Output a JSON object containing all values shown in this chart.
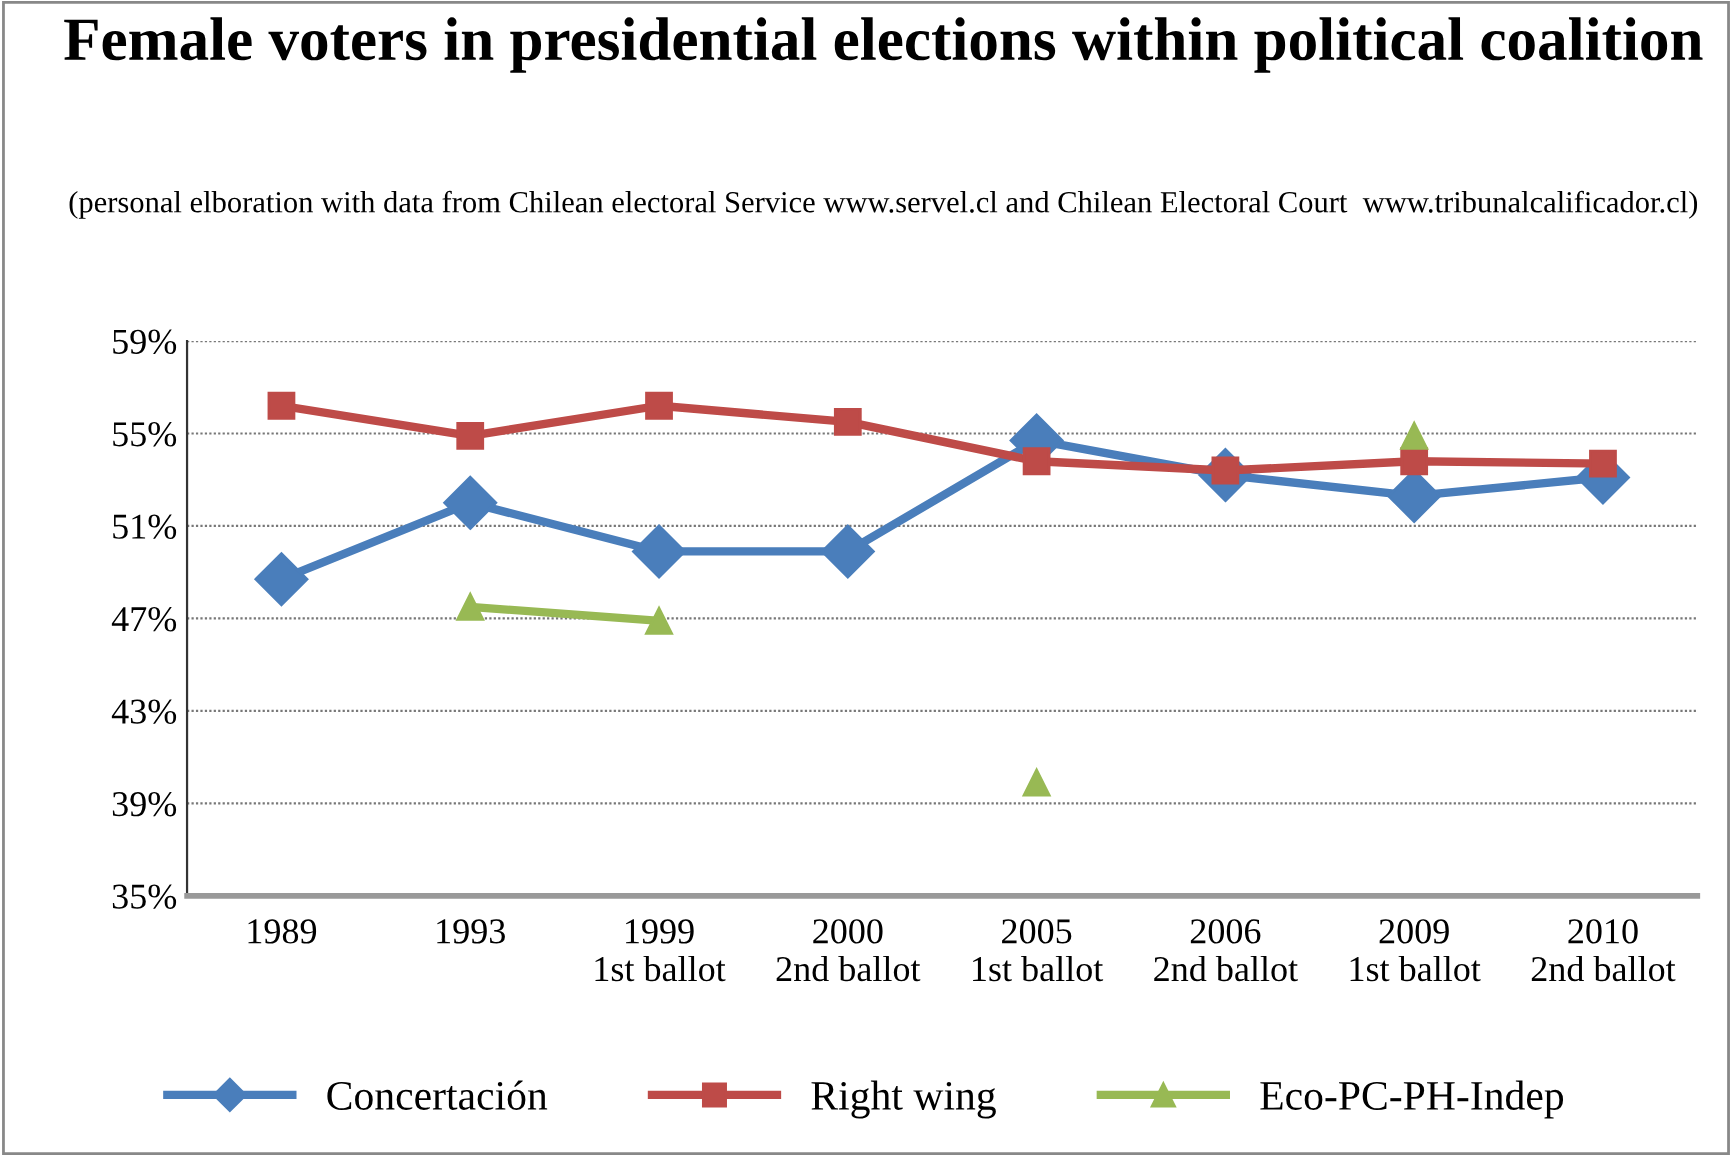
{
  "chart_data": {
    "type": "line",
    "title": "Female voters in presidential elections within political coalition",
    "subtitle": "(personal elboration with data from Chilean electoral Service www.servel.cl and Chilean Electoral Court  www.tribunalcalificador.cl)",
    "categories": [
      "1989",
      "1993",
      "1999 1st ballot",
      "2000 2nd ballot",
      "2005 1st ballot",
      "2006 2nd ballot",
      "2009 1st ballot",
      "2010 2nd ballot"
    ],
    "series": [
      {
        "name": "Concertación",
        "color": "#4a7ebb",
        "marker": "diamond",
        "values": [
          48.7,
          52.0,
          49.9,
          49.9,
          54.7,
          53.2,
          52.3,
          53.1
        ]
      },
      {
        "name": "Right wing",
        "color": "#be4b48",
        "marker": "square",
        "values": [
          56.2,
          54.9,
          56.2,
          55.5,
          53.8,
          53.4,
          53.8,
          53.7
        ]
      },
      {
        "name": "Eco-PC-PH-Indep",
        "color": "#98b954",
        "marker": "triangle",
        "values": [
          null,
          47.5,
          46.9,
          null,
          39.9,
          null,
          54.9,
          null
        ]
      }
    ],
    "ylim": [
      35,
      59
    ],
    "yticks": [
      {
        "value": 35,
        "label": "35%"
      },
      {
        "value": 39,
        "label": "39%"
      },
      {
        "value": 43,
        "label": "43%"
      },
      {
        "value": 47,
        "label": "47%"
      },
      {
        "value": 51,
        "label": "51%"
      },
      {
        "value": 55,
        "label": "55%"
      },
      {
        "value": 59,
        "label": "59%"
      }
    ],
    "grid": "y",
    "legend": "bottom",
    "line_style": "solid"
  }
}
